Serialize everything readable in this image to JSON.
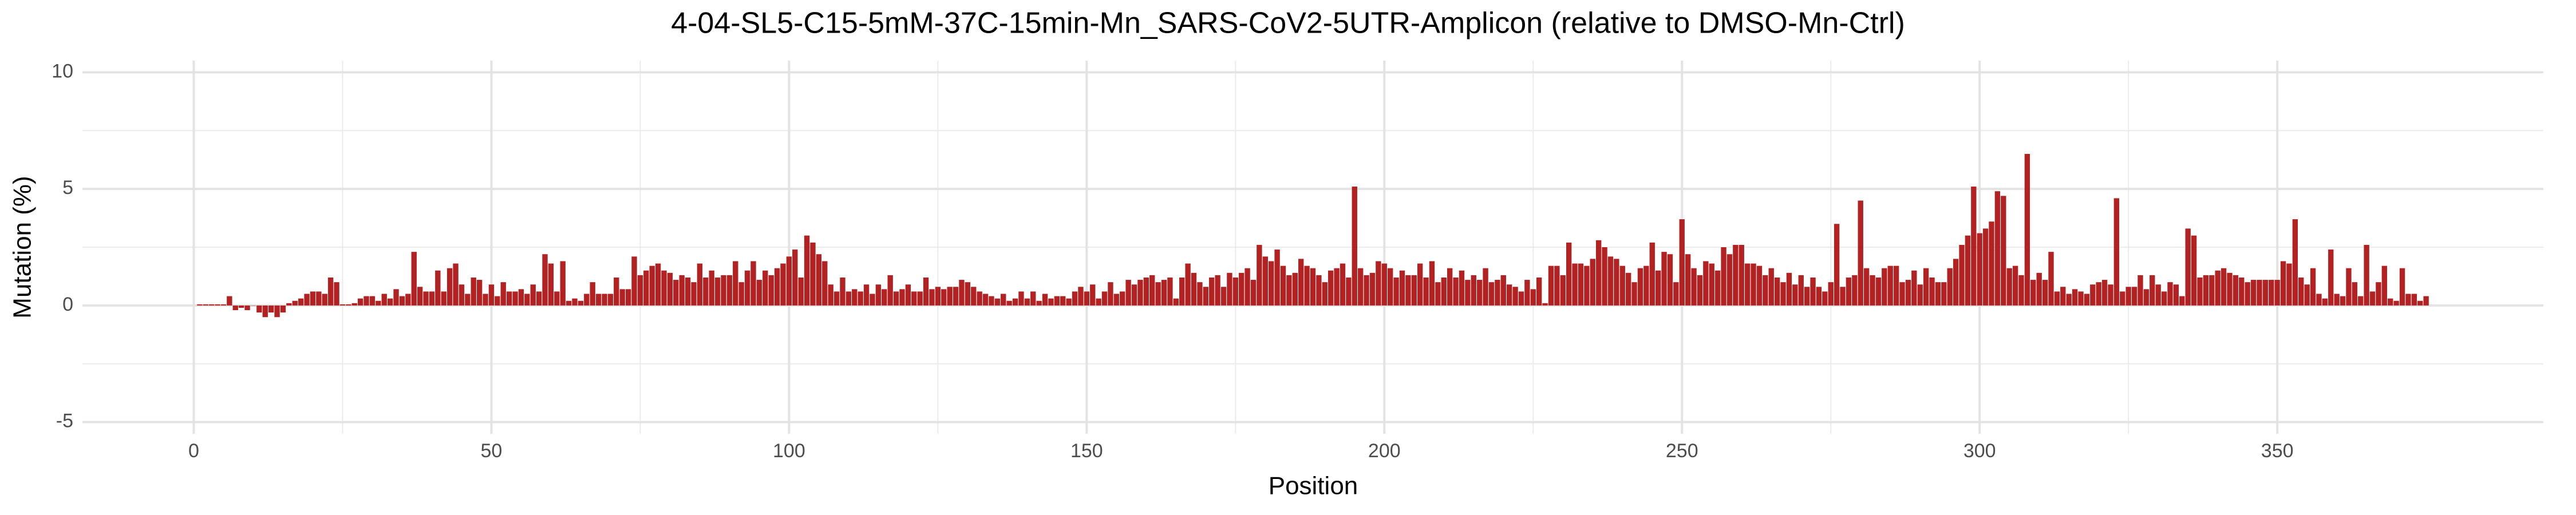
{
  "chart_data": {
    "type": "bar",
    "title": "4-04-SL5-C15-5mM-37C-15min-Mn_SARS-CoV2-5UTR-Amplicon (relative to DMSO-Mn-Ctrl)",
    "xlabel": "Position",
    "ylabel": "Mutation (%)",
    "color": "#b22222",
    "grid": true,
    "xlim": [
      -18.7,
      394.7
    ],
    "xticks": [
      0,
      50,
      100,
      150,
      200,
      250,
      300,
      350
    ],
    "ylim": [
      -5.5,
      10.5
    ],
    "yticks": [
      -5,
      0,
      5,
      10
    ],
    "x": [
      1,
      2,
      3,
      4,
      5,
      6,
      7,
      8,
      9,
      10,
      11,
      12,
      13,
      14,
      15,
      16,
      17,
      18,
      19,
      20,
      21,
      22,
      23,
      24,
      25,
      26,
      27,
      28,
      29,
      30,
      31,
      32,
      33,
      34,
      35,
      36,
      37,
      38,
      39,
      40,
      41,
      42,
      43,
      44,
      45,
      46,
      47,
      48,
      49,
      50,
      51,
      52,
      53,
      54,
      55,
      56,
      57,
      58,
      59,
      60,
      61,
      62,
      63,
      64,
      65,
      66,
      67,
      68,
      69,
      70,
      71,
      72,
      73,
      74,
      75,
      76,
      77,
      78,
      79,
      80,
      81,
      82,
      83,
      84,
      85,
      86,
      87,
      88,
      89,
      90,
      91,
      92,
      93,
      94,
      95,
      96,
      97,
      98,
      99,
      100,
      101,
      102,
      103,
      104,
      105,
      106,
      107,
      108,
      109,
      110,
      111,
      112,
      113,
      114,
      115,
      116,
      117,
      118,
      119,
      120,
      121,
      122,
      123,
      124,
      125,
      126,
      127,
      128,
      129,
      130,
      131,
      132,
      133,
      134,
      135,
      136,
      137,
      138,
      139,
      140,
      141,
      142,
      143,
      144,
      145,
      146,
      147,
      148,
      149,
      150,
      151,
      152,
      153,
      154,
      155,
      156,
      157,
      158,
      159,
      160,
      161,
      162,
      163,
      164,
      165,
      166,
      167,
      168,
      169,
      170,
      171,
      172,
      173,
      174,
      175,
      176,
      177,
      178,
      179,
      180,
      181,
      182,
      183,
      184,
      185,
      186,
      187,
      188,
      189,
      190,
      191,
      192,
      193,
      194,
      195,
      196,
      197,
      198,
      199,
      200,
      201,
      202,
      203,
      204,
      205,
      206,
      207,
      208,
      209,
      210,
      211,
      212,
      213,
      214,
      215,
      216,
      217,
      218,
      219,
      220,
      221,
      222,
      223,
      224,
      225,
      226,
      227,
      228,
      229,
      230,
      231,
      232,
      233,
      234,
      235,
      236,
      237,
      238,
      239,
      240,
      241,
      242,
      243,
      244,
      245,
      246,
      247,
      248,
      249,
      250,
      251,
      252,
      253,
      254,
      255,
      256,
      257,
      258,
      259,
      260,
      261,
      262,
      263,
      264,
      265,
      266,
      267,
      268,
      269,
      270,
      271,
      272,
      273,
      274,
      275,
      276,
      277,
      278,
      279,
      280,
      281,
      282,
      283,
      284,
      285,
      286,
      287,
      288,
      289,
      290,
      291,
      292,
      293,
      294,
      295,
      296,
      297,
      298,
      299,
      300,
      301,
      302,
      303,
      304,
      305,
      306,
      307,
      308,
      309,
      310,
      311,
      312,
      313,
      314,
      315,
      316,
      317,
      318,
      319,
      320,
      321,
      322,
      323,
      324,
      325,
      326,
      327,
      328,
      329,
      330,
      331,
      332,
      333,
      334,
      335,
      336,
      337,
      338,
      339,
      340,
      341,
      342,
      343,
      344,
      345,
      346,
      347,
      348,
      349,
      350,
      351,
      352,
      353,
      354,
      355,
      356,
      357,
      358,
      359,
      360,
      361,
      362,
      363,
      364,
      365,
      366,
      367,
      368,
      369,
      370,
      371,
      372,
      373,
      374,
      375
    ],
    "values": [
      0.05,
      0.05,
      0.05,
      0.05,
      0.05,
      0.4,
      -0.2,
      -0.1,
      -0.2,
      0,
      -0.3,
      -0.5,
      -0.3,
      -0.5,
      -0.3,
      0.1,
      0.2,
      0.3,
      0.5,
      0.6,
      0.6,
      0.5,
      1.2,
      1.0,
      0.05,
      0.05,
      0.1,
      0.3,
      0.4,
      0.4,
      0.2,
      0.5,
      0.3,
      0.7,
      0.4,
      0.5,
      2.3,
      0.8,
      0.6,
      0.6,
      1.5,
      0.6,
      1.6,
      1.8,
      0.9,
      0.5,
      1.2,
      1.1,
      0.5,
      0.9,
      0.4,
      1.0,
      0.6,
      0.6,
      0.7,
      0.5,
      0.9,
      0.6,
      2.2,
      1.8,
      0.6,
      1.9,
      0.2,
      0.3,
      0.2,
      0.5,
      1.0,
      0.5,
      0.5,
      0.5,
      1.2,
      0.7,
      0.7,
      2.1,
      1.3,
      1.5,
      1.7,
      1.8,
      1.5,
      1.4,
      1.1,
      1.3,
      1.2,
      1.0,
      1.8,
      1.2,
      1.5,
      1.2,
      1.3,
      1.3,
      1.9,
      1.0,
      1.5,
      1.9,
      1.1,
      1.5,
      1.3,
      1.6,
      1.8,
      2.1,
      2.4,
      1.2,
      3.0,
      2.7,
      2.2,
      1.9,
      0.9,
      0.6,
      1.2,
      0.6,
      0.7,
      0.6,
      0.9,
      0.5,
      0.9,
      0.7,
      1.3,
      0.6,
      0.7,
      0.9,
      0.6,
      0.6,
      1.2,
      0.7,
      0.8,
      0.7,
      0.8,
      0.8,
      1.1,
      1.0,
      0.8,
      0.6,
      0.5,
      0.4,
      0.3,
      0.5,
      0.2,
      0.3,
      0.6,
      0.3,
      0.6,
      0.2,
      0.5,
      0.3,
      0.4,
      0.4,
      0.3,
      0.6,
      0.8,
      0.6,
      0.9,
      0.3,
      0.6,
      1.0,
      0.5,
      0.6,
      1.1,
      0.9,
      1.1,
      1.2,
      1.3,
      1.0,
      1.1,
      1.2,
      0.3,
      1.2,
      1.8,
      1.4,
      1.0,
      0.8,
      1.2,
      1.3,
      0.8,
      1.4,
      1.2,
      1.4,
      1.6,
      1.1,
      2.6,
      2.1,
      1.9,
      2.4,
      1.7,
      1.3,
      1.4,
      2.0,
      1.7,
      1.6,
      1.3,
      1.0,
      1.5,
      1.6,
      1.8,
      1.2,
      5.1,
      1.6,
      1.3,
      1.4,
      1.9,
      1.8,
      1.6,
      1.2,
      1.5,
      1.3,
      1.3,
      1.8,
      1.2,
      1.9,
      1.0,
      1.2,
      1.6,
      1.2,
      1.5,
      1.1,
      1.3,
      1.1,
      1.6,
      1.0,
      1.1,
      1.3,
      0.9,
      0.8,
      0.6,
      1.1,
      0.7,
      1.2,
      0.1,
      1.7,
      1.7,
      1.3,
      2.7,
      1.8,
      1.8,
      1.7,
      2.0,
      2.8,
      2.5,
      2.1,
      2.0,
      1.7,
      1.4,
      1.0,
      1.6,
      1.7,
      2.7,
      1.5,
      2.3,
      2.2,
      1.0,
      3.7,
      2.2,
      1.6,
      1.3,
      1.9,
      1.8,
      1.5,
      2.5,
      2.2,
      2.6,
      2.6,
      1.8,
      1.8,
      1.7,
      1.3,
      1.6,
      1.2,
      1.0,
      1.4,
      0.9,
      1.3,
      0.8,
      1.2,
      0.8,
      0.6,
      1.0,
      3.5,
      0.8,
      1.2,
      1.3,
      4.5,
      1.6,
      1.3,
      1.2,
      1.6,
      1.7,
      1.7,
      1.0,
      1.1,
      1.5,
      0.9,
      1.6,
      1.2,
      1.0,
      1.0,
      1.6,
      2.0,
      2.6,
      3.0,
      5.1,
      3.1,
      3.3,
      3.6,
      4.9,
      4.7,
      1.6,
      1.7,
      1.3,
      6.5,
      1.1,
      1.4,
      1.1,
      2.3,
      0.6,
      0.8,
      0.5,
      0.7,
      0.6,
      0.5,
      0.9,
      1.0,
      1.1,
      0.9,
      4.6,
      0.6,
      0.8,
      0.8,
      1.3,
      0.7,
      1.3,
      0.9,
      0.6,
      1.0,
      0.9,
      0.4,
      3.3,
      3.0,
      1.2,
      1.3,
      1.3,
      1.5,
      1.6,
      1.4,
      1.3,
      1.2,
      1.0,
      1.1,
      1.1,
      1.1,
      1.1,
      1.1,
      1.9,
      1.8,
      3.7,
      1.2,
      0.9,
      1.6,
      0.5,
      0.3,
      2.4,
      0.5,
      0.4,
      1.6,
      1.0,
      0.4,
      2.6,
      0.6,
      1.0,
      1.7,
      0.3,
      0.2,
      1.6,
      0.5,
      0.5,
      0.2,
      0.4
    ]
  }
}
